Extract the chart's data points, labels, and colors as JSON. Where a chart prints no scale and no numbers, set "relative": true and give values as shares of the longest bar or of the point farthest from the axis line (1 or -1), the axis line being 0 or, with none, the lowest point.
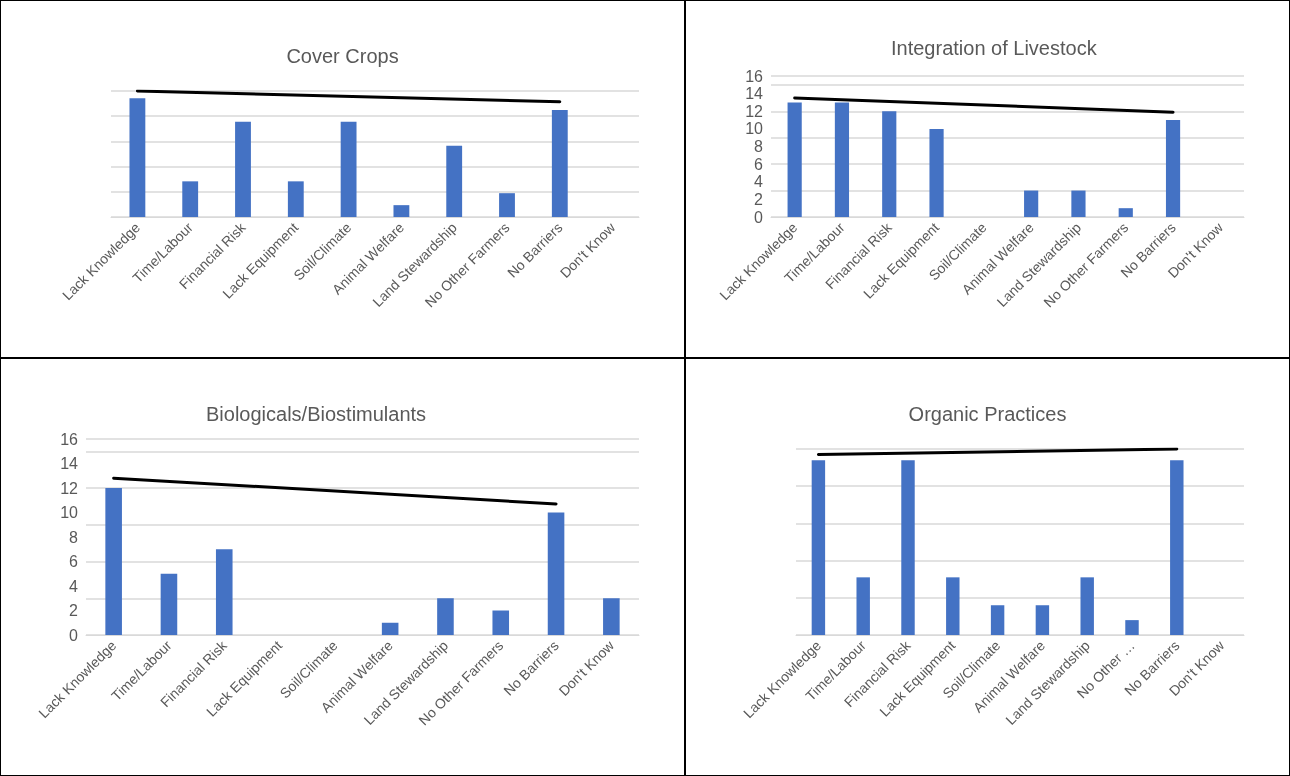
{
  "chart_data": [
    {
      "type": "bar",
      "title": "Cover Crops",
      "relative": true,
      "grid": "y",
      "categories": [
        "Lack Knowledge",
        "Time/Labour",
        "Financial Risk",
        "Lack Equipment",
        "Soil/Climate",
        "Animal Welfare",
        "Land Stewardship",
        "No Other Farmers",
        "No Barriers",
        "Don't Know"
      ],
      "series": [
        {
          "color": "#4472c4",
          "values": [
            0.943,
            0.283,
            0.755,
            0.283,
            0.755,
            0.094,
            0.566,
            0.189,
            0.849,
            0
          ]
        },
        {
          "type": "line",
          "color": "#000000",
          "marker": "none",
          "x": [
            "Lack Knowledge",
            "No Barriers"
          ],
          "values": [
            1,
            0.915
          ]
        }
      ]
    },
    {
      "type": "bar",
      "title": "Integration of Livestock",
      "grid": "y",
      "ylim": [
        0,
        16
      ],
      "yticks": [
        0,
        2,
        4,
        6,
        8,
        10,
        12,
        14,
        16
      ],
      "categories": [
        "Lack Knowledge",
        "Time/Labour",
        "Financial Risk",
        "Lack Equipment",
        "Soil/Climate",
        "Animal Welfare",
        "Land Stewardship",
        "No Other Farmers",
        "No Barriers",
        "Don't Know"
      ],
      "series": [
        {
          "color": "#4472c4",
          "values": [
            13,
            13,
            12,
            10,
            0,
            3,
            3,
            1,
            11,
            0
          ]
        },
        {
          "type": "line",
          "color": "#000000",
          "marker": "none",
          "x": [
            "Lack Knowledge",
            "No Barriers"
          ],
          "values": [
            13.5,
            11.9
          ]
        }
      ]
    },
    {
      "type": "bar",
      "title": "Biologicals/Biostimulants",
      "grid": "y",
      "ylim": [
        0,
        16
      ],
      "yticks": [
        0,
        2,
        4,
        6,
        8,
        10,
        12,
        14,
        16
      ],
      "categories": [
        "Lack Knowledge",
        "Time/Labour",
        "Financial Risk",
        "Lack Equipment",
        "Soil/Climate",
        "Animal Welfare",
        "Land Stewardship",
        "No Other Farmers",
        "No Barriers",
        "Don't Know"
      ],
      "series": [
        {
          "color": "#4472c4",
          "values": [
            12,
            5,
            7,
            0,
            0,
            1,
            3,
            2,
            10,
            3
          ]
        },
        {
          "type": "line",
          "color": "#000000",
          "marker": "none",
          "x": [
            "Lack Knowledge",
            "No Barriers"
          ],
          "values": [
            12.8,
            10.7
          ]
        }
      ]
    },
    {
      "type": "bar",
      "title": "Organic Practices",
      "relative": true,
      "grid": "y",
      "categories": [
        "Lack Knowledge",
        "Time/Labour",
        "Financial Risk",
        "Lack Equipment",
        "Soil/Climate",
        "Animal Welfare",
        "Land Stewardship",
        "No Other …",
        "No Barriers",
        "Don't Know"
      ],
      "series": [
        {
          "color": "#4472c4",
          "values": [
            0.94,
            0.31,
            0.94,
            0.31,
            0.16,
            0.16,
            0.31,
            0.08,
            0.94,
            0
          ]
        },
        {
          "type": "line",
          "color": "#000000",
          "marker": "none",
          "x": [
            "Lack Knowledge",
            "No Barriers"
          ],
          "values": [
            0.97,
            1
          ]
        }
      ]
    }
  ]
}
